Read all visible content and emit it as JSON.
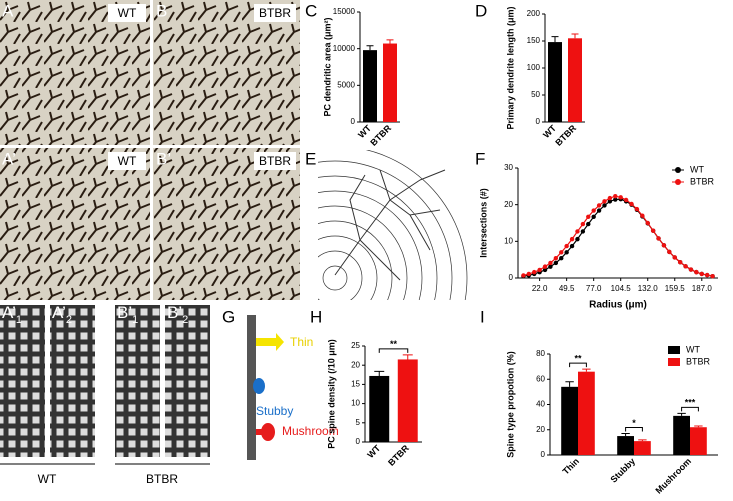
{
  "panels": {
    "A": "A",
    "B": "B",
    "C": "C",
    "D": "D",
    "A2": "A’",
    "B2": "B’",
    "E": "E",
    "F": "F",
    "G": "G",
    "H": "H",
    "I": "I"
  },
  "images": [
    {
      "tag": "WT"
    },
    {
      "tag": "BTBR"
    },
    {
      "tag": "WT"
    },
    {
      "tag": "BTBR"
    }
  ],
  "strips": [
    {
      "letter": "A’",
      "sub": "1"
    },
    {
      "letter": "A’",
      "sub": "2"
    },
    {
      "letter": "B’",
      "sub": "1"
    },
    {
      "letter": "B’",
      "sub": "2"
    }
  ],
  "groups": [
    "WT",
    "BTBR"
  ],
  "diagram": {
    "thin": "Thin",
    "stubby": "Stubby",
    "mushroom": "Mushroom"
  },
  "chart_data": [
    {
      "type": "bar",
      "ylabel": "PC dendritic area (μm²)",
      "categories": [
        "WT",
        "BTBR"
      ],
      "values": [
        9800,
        10700
      ],
      "errors": [
        600,
        500
      ],
      "colors": [
        "#000000",
        "#ee1111"
      ],
      "ylim": [
        0,
        15000
      ],
      "yticks": [
        0,
        5000,
        10000,
        15000
      ]
    },
    {
      "type": "bar",
      "ylabel": "Primary dendrite length (μm)",
      "categories": [
        "WT",
        "BTBR"
      ],
      "values": [
        148,
        155
      ],
      "errors": [
        10,
        8
      ],
      "colors": [
        "#000000",
        "#ee1111"
      ],
      "ylim": [
        0,
        200
      ],
      "yticks": [
        0,
        50,
        100,
        150,
        200
      ]
    },
    {
      "type": "line",
      "xlabel": "Radius (μm)",
      "ylabel": "Intersections (#)",
      "legend": "upper right",
      "x": [
        5.5,
        11,
        16.5,
        22,
        27.5,
        33,
        38.5,
        44,
        49.5,
        55,
        60.5,
        66,
        71.5,
        77,
        82.5,
        88,
        93.5,
        99,
        104.5,
        110,
        115.5,
        121,
        126.5,
        132,
        137.5,
        143,
        148.5,
        154,
        159.5,
        165,
        170.5,
        176,
        181.5,
        187,
        192.5,
        198
      ],
      "series": [
        {
          "name": "WT",
          "color": "#000000",
          "values": [
            0.5,
            0.7,
            1.1,
            1.6,
            2.2,
            3.1,
            4.1,
            5.4,
            7.0,
            8.7,
            10.6,
            12.7,
            14.7,
            16.7,
            18.4,
            19.8,
            20.9,
            21.4,
            21.5,
            20.9,
            20.0,
            18.6,
            16.8,
            14.9,
            12.9,
            10.8,
            8.9,
            7.1,
            5.6,
            4.3,
            3.2,
            2.3,
            1.6,
            1.1,
            0.8,
            0.5
          ]
        },
        {
          "name": "BTBR",
          "color": "#ee1111",
          "values": [
            0.7,
            1.1,
            1.6,
            2.2,
            3.1,
            4.1,
            5.4,
            7.0,
            8.7,
            10.6,
            12.7,
            14.7,
            16.7,
            18.4,
            19.8,
            20.9,
            21.8,
            22.3,
            22.0,
            21.3,
            20.2,
            18.8,
            17.0,
            15.0,
            12.9,
            10.8,
            8.9,
            7.1,
            5.6,
            4.3,
            3.2,
            2.3,
            1.6,
            1.1,
            0.8,
            0.5
          ]
        }
      ],
      "xlim": [
        0,
        203.5
      ],
      "xticks": [
        {
          "value": 22,
          "label": "22.0"
        },
        49.5,
        {
          "value": 77,
          "label": "77.0"
        },
        104.5,
        {
          "value": 132,
          "label": "132.0"
        },
        159.5,
        {
          "value": 187,
          "label": "187.0"
        }
      ],
      "ylim": [
        0,
        30
      ],
      "yticks": [
        0,
        10,
        20,
        30
      ]
    },
    {
      "type": "bar",
      "ylabel": "PC spine density (/10 μm)",
      "categories": [
        "WT",
        "BTBR"
      ],
      "values": [
        17.2,
        21.5
      ],
      "errors": [
        1.2,
        1.2
      ],
      "colors": [
        "#000000",
        "#ee1111"
      ],
      "ylim": [
        0,
        25
      ],
      "yticks": [
        0,
        5,
        10,
        15,
        20,
        25
      ],
      "annotations": [
        "**"
      ]
    },
    {
      "type": "bar",
      "ylabel": "Spine type propotion (%)",
      "categories": [
        "Thin",
        "Stubby",
        "Mushroom"
      ],
      "legend": "upper right",
      "series": [
        {
          "name": "WT",
          "color": "#000000",
          "values": [
            54,
            15,
            31
          ],
          "errors": [
            4,
            2,
            2
          ]
        },
        {
          "name": "BTBR",
          "color": "#ee1111",
          "values": [
            66,
            11,
            22
          ],
          "errors": [
            2,
            1,
            1
          ]
        }
      ],
      "ylim": [
        0,
        80
      ],
      "yticks": [
        0,
        20,
        40,
        60,
        80
      ],
      "annotations": [
        "**",
        "*",
        "***"
      ]
    }
  ]
}
